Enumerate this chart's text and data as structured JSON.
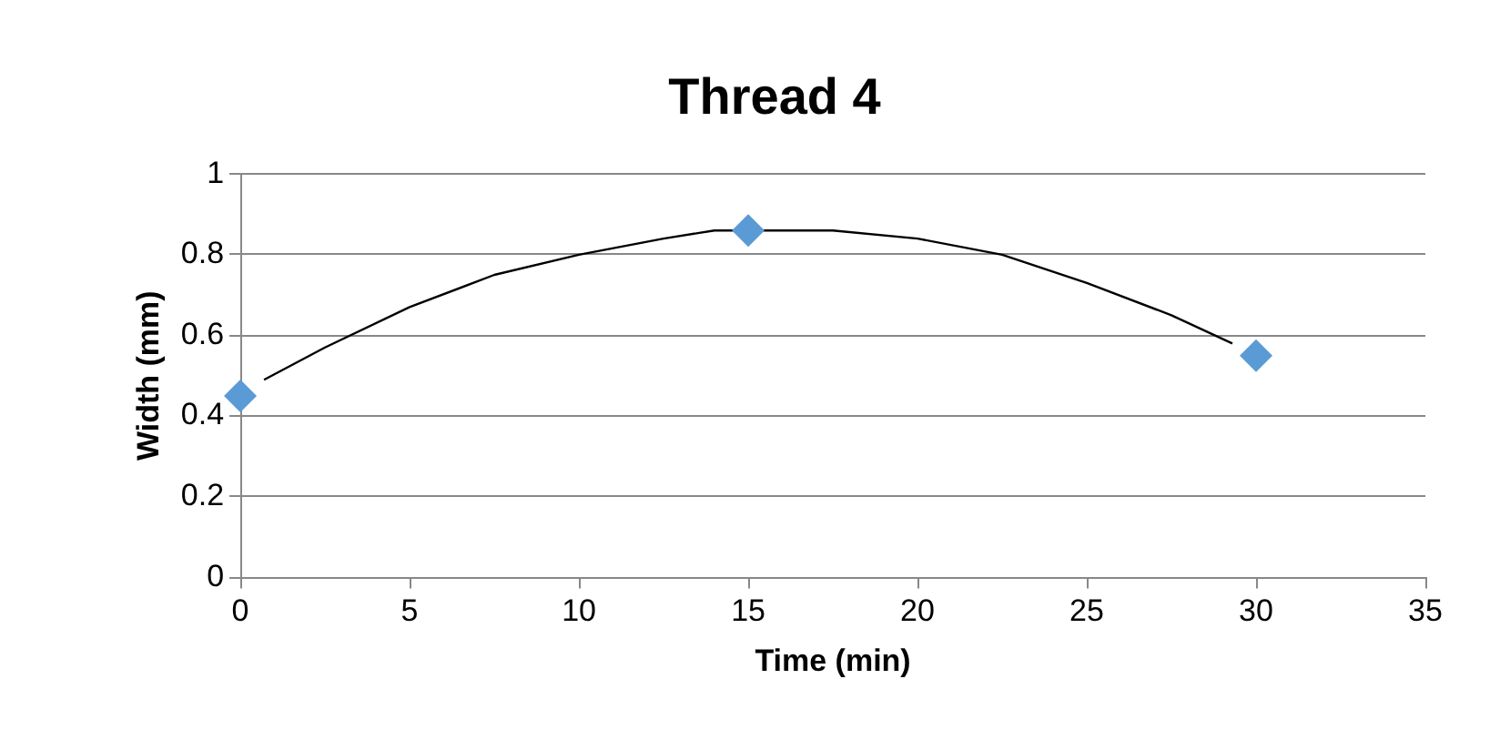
{
  "chart_data": {
    "type": "scatter",
    "title": "Thread 4",
    "xlabel": "Time (min)",
    "ylabel": "Width (mm)",
    "x": [
      0,
      15,
      30
    ],
    "series": [
      {
        "type": "scatter",
        "color": "#5b9bd5",
        "marker": "diamond",
        "values": [
          0.45,
          0.86,
          0.55
        ]
      },
      {
        "type": "line",
        "color": "#000000",
        "marker": "none",
        "x": [
          0.7,
          2.5,
          5,
          7.5,
          10,
          12.5,
          14,
          16,
          17.5,
          20,
          22.5,
          25,
          27.5,
          29.3
        ],
        "values": [
          0.49,
          0.57,
          0.67,
          0.75,
          0.8,
          0.84,
          0.86,
          0.86,
          0.86,
          0.84,
          0.8,
          0.73,
          0.65,
          0.58
        ]
      }
    ],
    "xlim": [
      0,
      35
    ],
    "xticks": [
      0,
      5,
      10,
      15,
      20,
      25,
      30,
      35
    ],
    "ylim": [
      0,
      1
    ],
    "yticks": [
      0,
      0.2,
      0.4,
      0.6,
      0.8,
      1
    ],
    "grid": "y",
    "legend": false
  }
}
